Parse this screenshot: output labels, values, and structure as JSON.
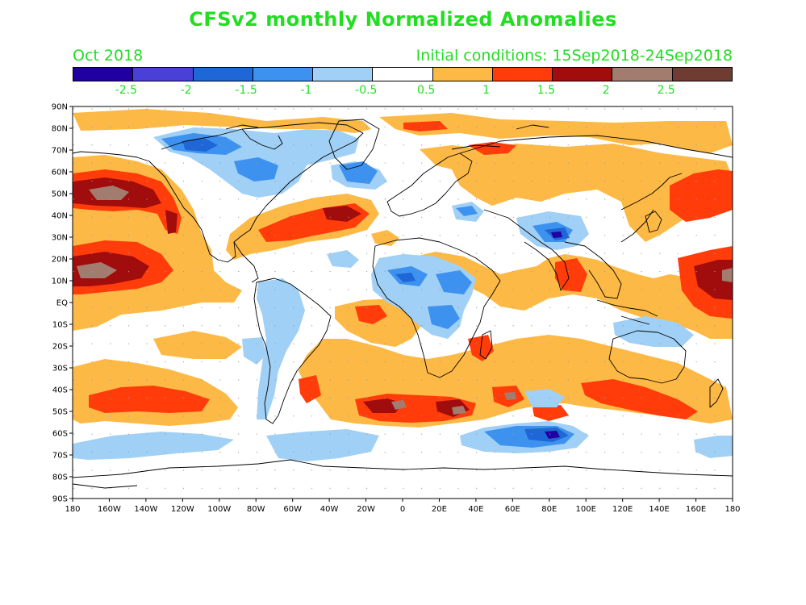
{
  "title": "CFSv2 monthly Normalized Anomalies",
  "month": "Oct 2018",
  "initial_conditions": "Initial conditions: 15Sep2018-24Sep2018",
  "colorbar": {
    "colors": [
      "#2000a0",
      "#4a40d8",
      "#1f66d6",
      "#3d92ef",
      "#a0d0f5",
      "#ffffff",
      "#fdb945",
      "#ff3c0a",
      "#a10c0c",
      "#a37c70",
      "#6e3c30"
    ],
    "labels": [
      "-2.5",
      "-2",
      "-1.5",
      "-1",
      "-0.5",
      "0.5",
      "1",
      "1.5",
      "2",
      "2.5"
    ]
  },
  "axes": {
    "lat_labels": [
      "90N",
      "80N",
      "70N",
      "60N",
      "50N",
      "40N",
      "30N",
      "20N",
      "10N",
      "EQ",
      "10S",
      "20S",
      "30S",
      "40S",
      "50S",
      "60S",
      "70S",
      "80S",
      "90S"
    ],
    "lon_labels": [
      "180",
      "160W",
      "140W",
      "120W",
      "100W",
      "80W",
      "60W",
      "40W",
      "20W",
      "0",
      "20E",
      "40E",
      "60E",
      "80E",
      "100E",
      "120E",
      "140E",
      "160E",
      "180"
    ]
  }
}
